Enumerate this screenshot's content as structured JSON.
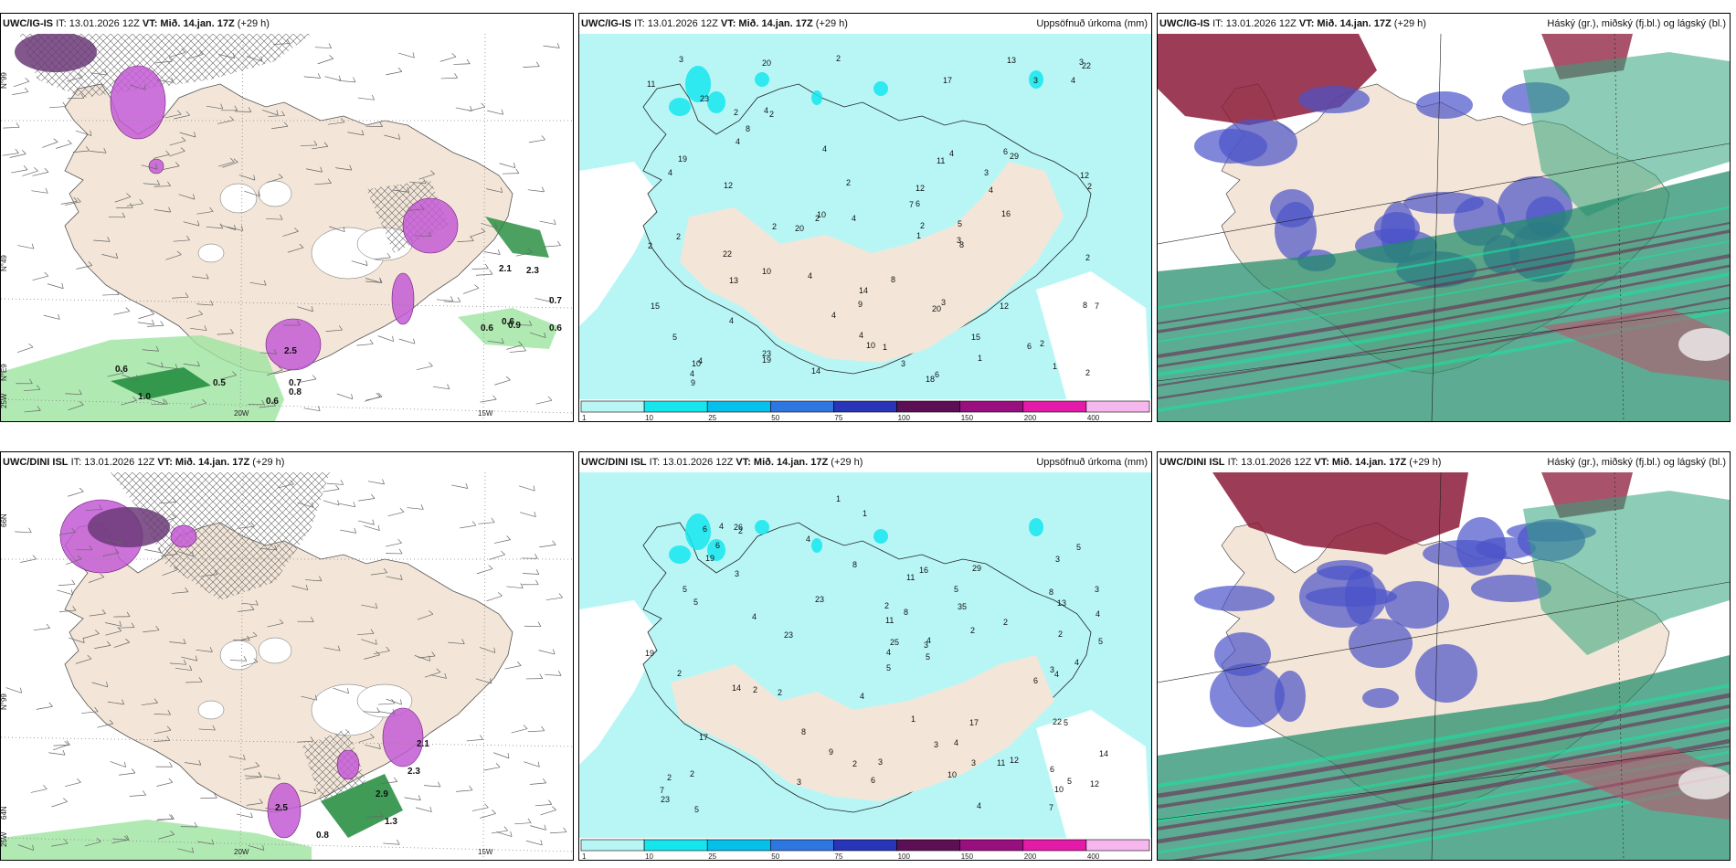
{
  "panels": [
    {
      "id": "p1",
      "model": "UWC/IG-IS",
      "it": "IT: 13.01.2026 12Z",
      "vt": "VT: Mið. 14.jan. 17Z",
      "lead": "(+29 h)",
      "right": "",
      "type": "precip-wind",
      "lat_labels": [
        "N°99",
        "N°49",
        "N°E9",
        "25W"
      ],
      "lon_labels": [
        "20W",
        "15W"
      ],
      "values": [
        "0.6",
        "0.5",
        "1.0",
        "0.6",
        "0.7",
        "0.8",
        "0.6",
        "0.7",
        "0.6",
        "0.6",
        "0.9",
        "2.1",
        "2.3",
        "2.5"
      ]
    },
    {
      "id": "p2",
      "model": "UWC/IG-IS",
      "it": "IT: 13.01.2026 12Z",
      "vt": "VT: Mið. 14.jan. 17Z",
      "lead": "(+29 h)",
      "right": "Uppsöfnuð úrkoma (mm)",
      "type": "accum",
      "values": [
        "14",
        "18",
        "23",
        "15",
        "20",
        "23",
        "2",
        "1",
        "2",
        "4",
        "3",
        "10",
        "10",
        "9",
        "17",
        "7",
        "19",
        "19",
        "20",
        "11",
        "20",
        "22",
        "12",
        "10",
        "29",
        "22",
        "15",
        "13",
        "3",
        "8",
        "4",
        "6",
        "14",
        "4",
        "4",
        "5",
        "8",
        "5",
        "4",
        "2",
        "6",
        "4",
        "7",
        "4",
        "2",
        "3",
        "2",
        "3",
        "2",
        "4",
        "3",
        "12",
        "2",
        "12",
        "10",
        "6",
        "2",
        "2",
        "4",
        "2",
        "6",
        "1",
        "4",
        "16",
        "1",
        "4",
        "2",
        "2",
        "9",
        "11",
        "4",
        "8",
        "8",
        "12",
        "3",
        "3",
        "1",
        "4",
        "4",
        "2",
        "13"
      ],
      "colorbar": {
        "labels": [
          "1",
          "10",
          "25",
          "50",
          "75",
          "100",
          "150",
          "200",
          "400"
        ],
        "colors": [
          "#b8f6f6",
          "#15e6ee",
          "#06c0ec",
          "#2f77e0",
          "#2835b8",
          "#5c0f55",
          "#9a0f80",
          "#e31ba8",
          "#f5b7ee"
        ]
      }
    },
    {
      "id": "p3",
      "model": "UWC/IG-IS",
      "it": "IT: 13.01.2026 12Z",
      "vt": "VT: Mið. 14.jan. 17Z",
      "lead": "(+29 h)",
      "right": "Háský (gr.), miðský (fj.bl.) og lágský (bl.)",
      "type": "clouds"
    },
    {
      "id": "p4",
      "model": "UWC/DINI ISL",
      "it": "IT: 13.01.2026 12Z",
      "vt": "VT: Mið. 14.jan. 17Z",
      "lead": "(+29 h)",
      "right": "",
      "type": "precip-wind",
      "lat_labels": [
        "66N",
        "N°99",
        "64N",
        "25W"
      ],
      "lon_labels": [
        "20W",
        "15W"
      ],
      "values": [
        "0.8",
        "1.3",
        "2.9",
        "2.3",
        "2.1",
        "2.5"
      ]
    },
    {
      "id": "p5",
      "model": "UWC/DINI ISL",
      "it": "IT: 13.01.2026 12Z",
      "vt": "VT: Mið. 14.jan. 17Z",
      "lead": "(+29 h)",
      "right": "Uppsöfnuð úrkoma (mm)",
      "type": "accum",
      "values": [
        "17",
        "4",
        "22",
        "14",
        "16",
        "12",
        "11",
        "35",
        "5",
        "2",
        "2",
        "1",
        "4",
        "6",
        "6",
        "9",
        "7",
        "8",
        "10",
        "17",
        "14",
        "29",
        "23",
        "23",
        "26",
        "19",
        "11",
        "10",
        "19",
        "2",
        "2",
        "7",
        "25",
        "13",
        "23",
        "11",
        "8",
        "4",
        "6",
        "5",
        "5",
        "5",
        "4",
        "3",
        "2",
        "4",
        "4",
        "3",
        "4",
        "2",
        "3",
        "2",
        "6",
        "5",
        "8",
        "3",
        "2",
        "4",
        "3",
        "2",
        "5",
        "3",
        "1",
        "6",
        "4",
        "12",
        "8",
        "5",
        "4",
        "2",
        "3",
        "5",
        "4",
        "5",
        "5",
        "3",
        "1",
        "2",
        "3"
      ],
      "colorbar": {
        "labels": [
          "1",
          "10",
          "25",
          "50",
          "75",
          "100",
          "150",
          "200",
          "400"
        ],
        "colors": [
          "#b8f6f6",
          "#15e6ee",
          "#06c0ec",
          "#2f77e0",
          "#2835b8",
          "#5c0f55",
          "#9a0f80",
          "#e31ba8",
          "#f5b7ee"
        ]
      }
    },
    {
      "id": "p6",
      "model": "UWC/DINI ISL",
      "it": "IT: 13.01.2026 12Z",
      "vt": "VT: Mið. 14.jan. 17Z",
      "lead": "(+29 h)",
      "right": "Háský (gr.), miðský (fj.bl.) og lágský (bl.)",
      "type": "clouds"
    }
  ],
  "colors": {
    "land": "#f3e6d8",
    "sea_precip": "#ffffff",
    "light_cyan": "#b8f6f6",
    "magenta": "#c35bd5",
    "green": "#9ee3a0",
    "dark_green": "#1f8a3a",
    "cloud_high": "#8b1a3a",
    "cloud_mid": "#4a52c9",
    "cloud_low": "#1f8a6a"
  }
}
